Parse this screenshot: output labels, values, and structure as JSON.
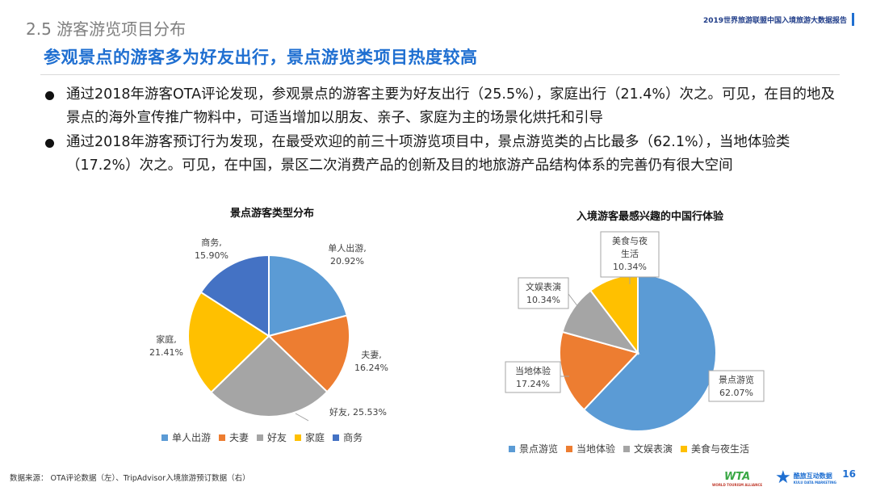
{
  "header": {
    "section_title": "2.5 游客游览项目分布",
    "report_title": "2019世界旅游联盟中国入境旅游大数据报告",
    "headline": "参观景点的游客多为好友出行，景点游览类项目热度较高"
  },
  "bullets": [
    "通过2018年游客OTA评论发现，参观景点的游客主要为好友出行（25.5%），家庭出行（21.4%）次之。可见，在目的地及景点的海外宣传推广物料中，可适当增加以朋友、亲子、家庭为主的场景化烘托和引导",
    "通过2018年游客预订行为发现，在最受欢迎的前三十项游览项目中，景点游览类的占比最多（62.1%），当地体验类（17.2%）次之。可见，在中国，景区二次消费产品的创新及目的地旅游产品结构体系的完善仍有很大空间"
  ],
  "chart_data": [
    {
      "type": "pie",
      "title": "景点游客类型分布",
      "categories": [
        "单人出游",
        "夫妻",
        "好友",
        "家庭",
        "商务"
      ],
      "values": [
        20.92,
        16.24,
        25.53,
        21.41,
        15.9
      ],
      "labels": [
        "单人出游,",
        "夫妻,",
        "好友,",
        "家庭,",
        "商务,"
      ],
      "value_labels": [
        "20.92%",
        "16.24%",
        "25.53%",
        "21.41%",
        "15.90%"
      ],
      "colors": [
        "#5b9bd5",
        "#ed7d31",
        "#a5a5a5",
        "#ffc000",
        "#4472c4"
      ],
      "legend_position": "bottom"
    },
    {
      "type": "pie",
      "title": "入境游客最感兴趣的中国行体验",
      "categories": [
        "景点游览",
        "当地体验",
        "文娱表演",
        "美食与夜生活"
      ],
      "values": [
        62.07,
        17.24,
        10.34,
        10.34
      ],
      "labels": [
        "景点游览",
        "当地体验",
        "文娱表演",
        "美食与夜生活"
      ],
      "value_labels": [
        "62.07%",
        "17.24%",
        "10.34%",
        "10.34%"
      ],
      "colors": [
        "#5b9bd5",
        "#ed7d31",
        "#a5a5a5",
        "#ffc000"
      ],
      "legend_position": "bottom"
    }
  ],
  "footer": {
    "source": "数据来源：  OTA评论数据（左）、TripAdvisor入境旅游预订数据（右）",
    "page_number": "16",
    "logo_wta": "WTA",
    "logo_wta_sub": "WORLD TOURISM ALLIANCE",
    "logo_dc_name": "酷旅互动数据",
    "logo_dc_sub": "KULU DATA MARKETING"
  }
}
